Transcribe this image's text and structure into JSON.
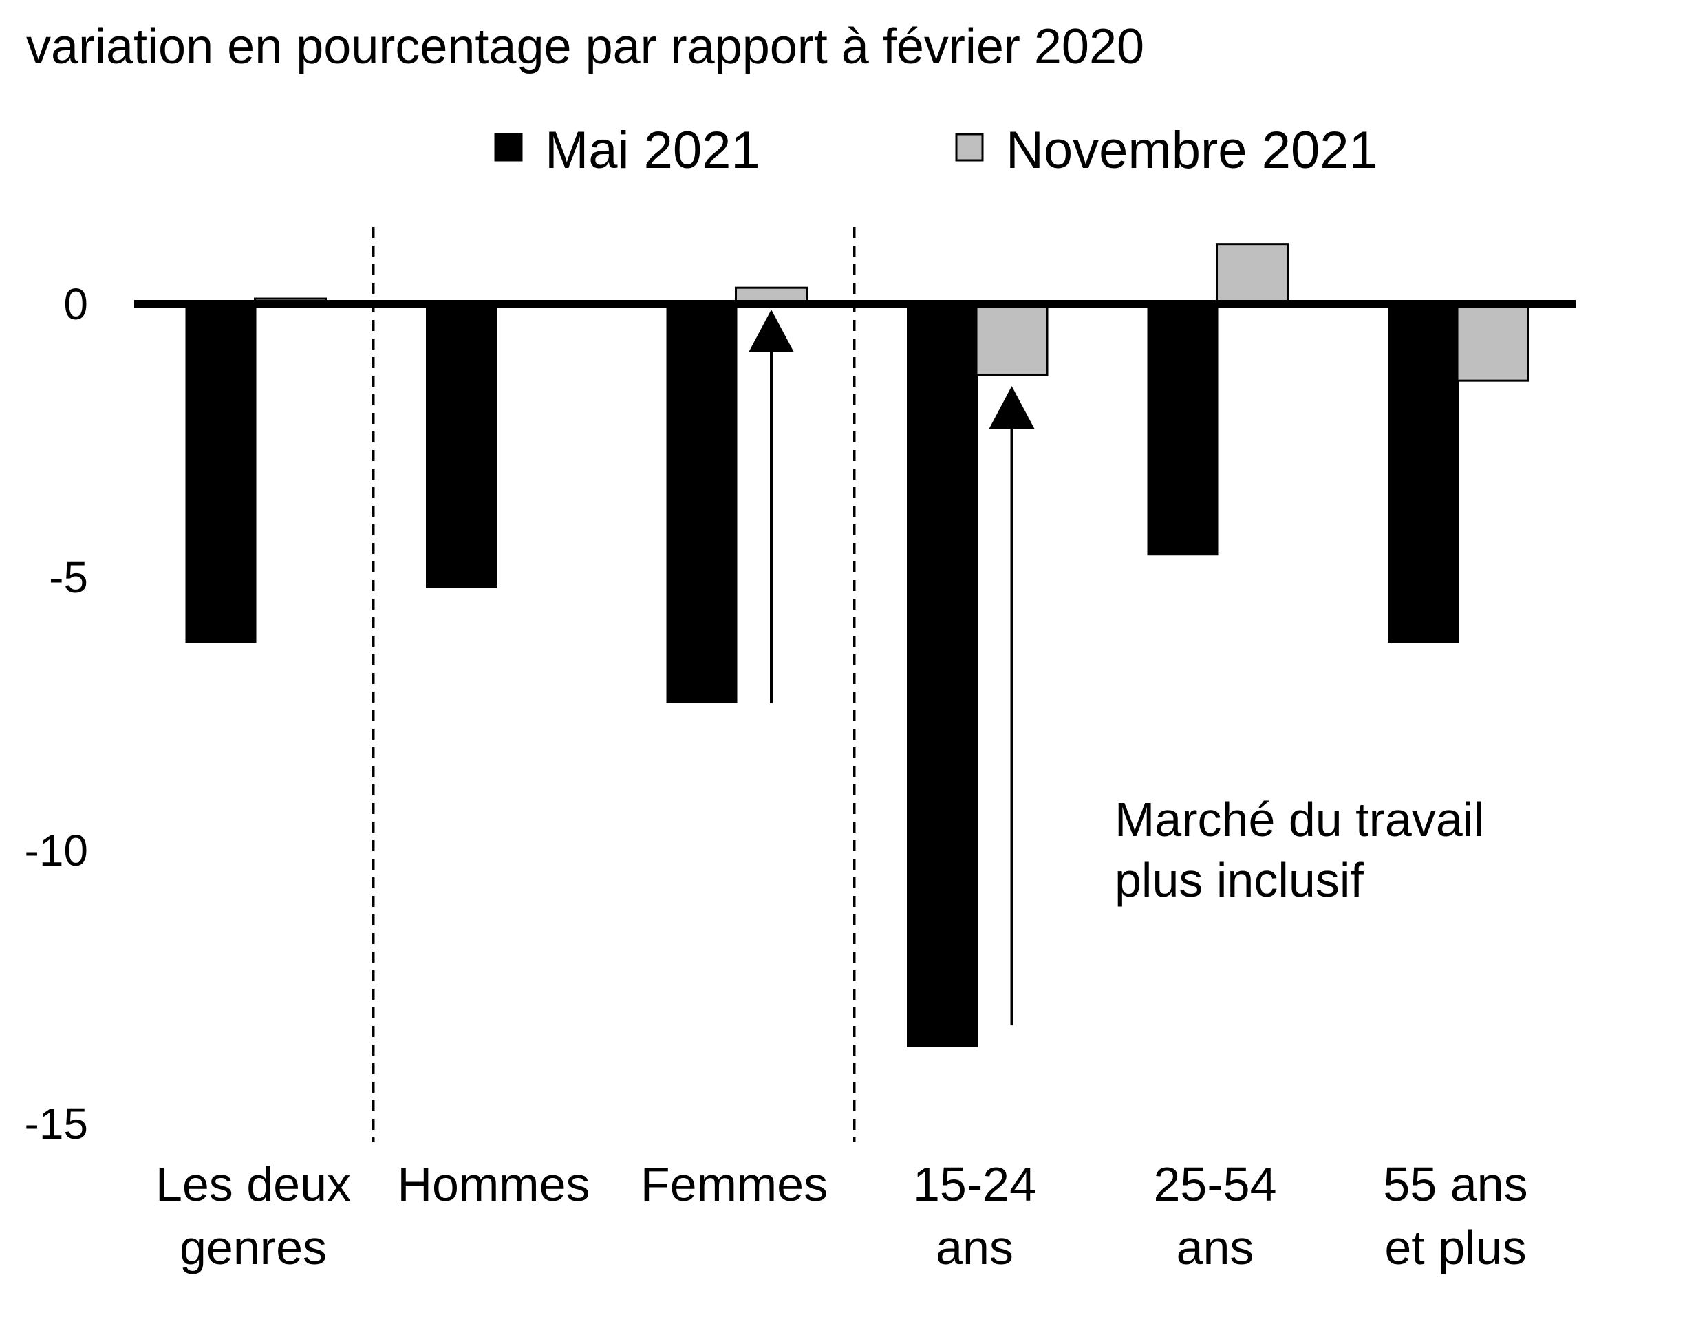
{
  "chart_data": {
    "type": "bar",
    "title": "",
    "ylabel": "variation en pourcentage par rapport à février 2020",
    "xlabel": "",
    "ylim": [
      -15,
      1
    ],
    "yticks": [
      0,
      -5,
      -10,
      -15
    ],
    "categories": [
      [
        "Les deux",
        "genres"
      ],
      [
        "Hommes"
      ],
      [
        "Femmes"
      ],
      [
        "15-24",
        "ans"
      ],
      [
        "25-54",
        "ans"
      ],
      [
        "55 ans",
        "et plus"
      ]
    ],
    "series": [
      {
        "name": "Mai 2021",
        "color": "#000000",
        "values": [
          -6.2,
          -5.2,
          -7.3,
          -13.6,
          -4.6,
          -6.2
        ]
      },
      {
        "name": "Novembre 2021",
        "color": "#bfbfbf",
        "values": [
          0.1,
          0.0,
          0.3,
          -1.3,
          1.1,
          -1.4
        ]
      }
    ],
    "group_separators_after": [
      0,
      2
    ],
    "grid": false,
    "legend_position": "top",
    "annotation": {
      "lines": [
        "Marché du travail",
        "plus inclusif"
      ],
      "arrows": [
        {
          "category_index": 2,
          "from": -7.3,
          "to": -0.1
        },
        {
          "category_index": 3,
          "from": -13.2,
          "to": -1.5
        }
      ]
    }
  }
}
